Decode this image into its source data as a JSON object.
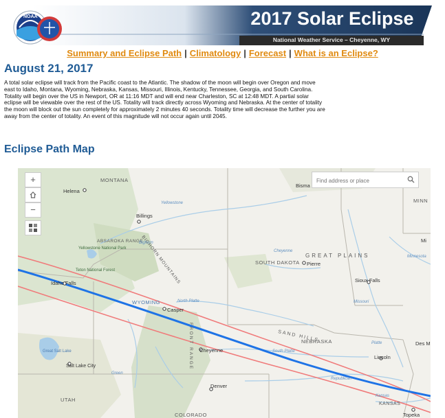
{
  "header": {
    "logo": "NOAA",
    "title": "2017 Solar Eclipse",
    "subtitle": "National Weather Service – Cheyenne, WY"
  },
  "nav": {
    "links": [
      "Summary and Eclipse Path",
      "Climatology",
      "Forecast",
      "What is an Eclipse?"
    ],
    "separator": "|"
  },
  "summary": {
    "date": "August 21, 2017",
    "text": "A total solar eclipse will track from the Pacific coast to the Atlantic. The shadow of the moon will begin over Oregon and move east to Idaho, Montana, Wyoming, Nebraska, Kansas, Missouri, Illinois, Kentucky, Tennessee, Georgia, and South Carolina. Totality will begin over the US in Newport, OR at 11:16 MDT and will end near Charleston, SC at 12:48 MDT. A partial solar eclipse will be viewable over the rest of the US. Totality will track directly across Wyoming and Nebraska. At the center of totality the moon will block out the sun completely for approximately 2 minutes 40 seconds. Totality time will decrease the further you are away from the center of totality. An event of this magnitude will not occur again until 2045."
  },
  "map": {
    "heading": "Eclipse Path Map",
    "search_placeholder": "Find address or place",
    "zoom_in": "+",
    "zoom_out": "−",
    "colors": {
      "center_line": "#1e73e6",
      "path_limits": "#f07b7b",
      "water": "#a9cde8"
    },
    "labels": {
      "states": [
        "MONTANA",
        "WYOMING",
        "SOUTH DAKOTA",
        "NEBRASKA",
        "UTAH",
        "COLORADO",
        "KANSAS",
        "MINN"
      ],
      "cities": [
        "Helena",
        "Billings",
        "Bisma",
        "Pierre",
        "Idaho Falls",
        "Casper",
        "Cheyenne",
        "Salt Lake City",
        "Denver",
        "Lincoln",
        "Sioux Falls",
        "Topeka",
        "Des M",
        "Mi"
      ],
      "regions": [
        "GREAT PLAINS",
        "SAND HILLS",
        "BIGHORN MOUNTAINS",
        "ABSAROKA RANGE",
        "FRONT RANGE",
        "Yellowstone National Park",
        "Teton National Forest",
        "Great Salt Lake"
      ],
      "rivers": [
        "Yellowstone",
        "North Platte",
        "South Platte",
        "Cheyenne",
        "Missouri",
        "Platte",
        "Republican",
        "Green",
        "Bighorn",
        "Kansas",
        "Minnesota"
      ]
    }
  }
}
